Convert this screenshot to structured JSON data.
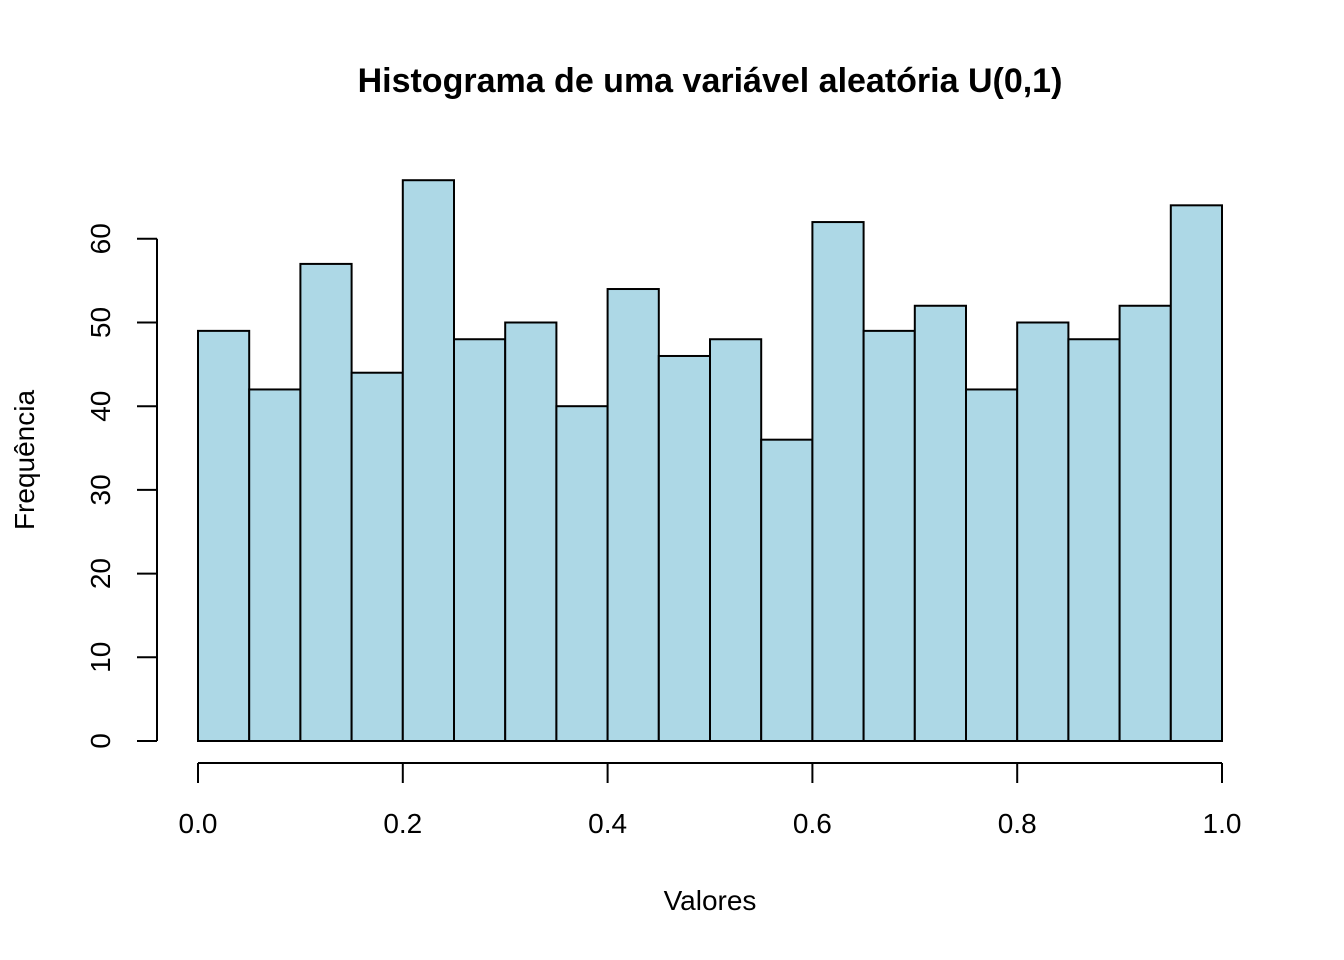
{
  "chart_data": {
    "type": "bar",
    "title": "Histograma de uma variável aleatória U(0,1)",
    "xlabel": "Valores",
    "ylabel": "Frequência",
    "bin_edges": [
      0.0,
      0.05,
      0.1,
      0.15,
      0.2,
      0.25,
      0.3,
      0.35,
      0.4,
      0.45,
      0.5,
      0.55,
      0.6,
      0.65,
      0.7,
      0.75,
      0.8,
      0.85,
      0.9,
      0.95,
      1.0
    ],
    "values": [
      49,
      42,
      57,
      44,
      67,
      48,
      50,
      40,
      54,
      46,
      48,
      36,
      62,
      49,
      52,
      42,
      50,
      48,
      52,
      64
    ],
    "xlim": [
      0,
      1
    ],
    "ylim": [
      0,
      67
    ],
    "x_ticks": [
      0.0,
      0.2,
      0.4,
      0.6,
      0.8,
      1.0
    ],
    "x_tick_labels": [
      "0.0",
      "0.2",
      "0.4",
      "0.6",
      "0.8",
      "1.0"
    ],
    "y_ticks": [
      0,
      10,
      20,
      30,
      40,
      50,
      60
    ],
    "y_tick_labels": [
      "0",
      "10",
      "20",
      "30",
      "40",
      "50",
      "60"
    ],
    "bar_color": "#add8e6",
    "grid": false,
    "legend": "none"
  }
}
